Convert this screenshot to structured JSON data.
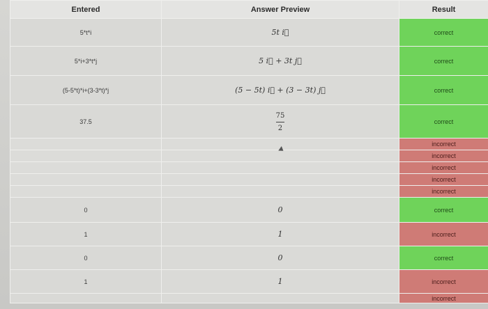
{
  "headers": {
    "entered": "Entered",
    "preview": "Answer Preview",
    "result": "Result"
  },
  "rows": [
    {
      "entered": "5*t*i",
      "preview": "5t i⃗",
      "result": "correct"
    },
    {
      "entered": "5*i+3*t*j",
      "preview": "5 i⃗ + 3t j⃗",
      "result": "correct"
    },
    {
      "entered": "(5-5*t)*i+(3-3*t)*j",
      "preview": "(5 − 5t) i⃗ + (3 − 3t) j⃗",
      "result": "correct"
    },
    {
      "entered": "37.5",
      "preview_num": "75",
      "preview_den": "2",
      "result": "correct"
    },
    {
      "entered": "",
      "preview": "",
      "result": "incorrect"
    },
    {
      "entered": "",
      "preview": "",
      "result": "incorrect"
    },
    {
      "entered": "",
      "preview": "",
      "result": "incorrect"
    },
    {
      "entered": "",
      "preview": "",
      "result": "incorrect"
    },
    {
      "entered": "",
      "preview": "",
      "result": "incorrect"
    },
    {
      "entered": "0",
      "preview": "0",
      "result": "correct"
    },
    {
      "entered": "1",
      "preview": "1",
      "result": "incorrect"
    },
    {
      "entered": "0",
      "preview": "0",
      "result": "correct"
    },
    {
      "entered": "1",
      "preview": "1",
      "result": "incorrect"
    },
    {
      "entered": "",
      "preview": "",
      "result": "incorrect"
    }
  ],
  "colors": {
    "correct": "#6fd35a",
    "incorrect": "#cf7b76",
    "header": "#e4e4e2",
    "cell": "#d9d9d6"
  }
}
